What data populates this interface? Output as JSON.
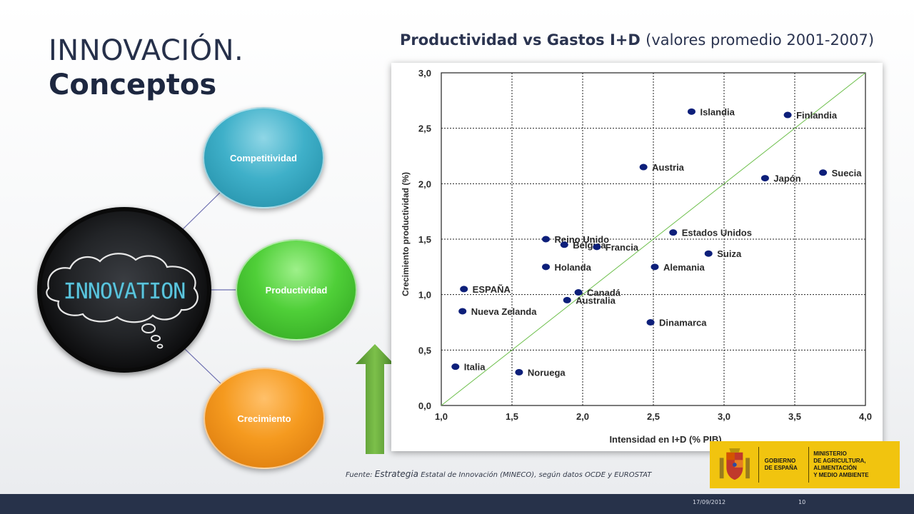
{
  "slide": {
    "title_line1": "INNOVACIÓN.",
    "title_line2": "Conceptos",
    "source_prefix": "Fuente: ",
    "source_emphasis": "Estrategia",
    "source_rest": " Estatal de Innovación (MINECO), según datos OCDE y EUROSTAT",
    "footer_date": "17/09/2012",
    "footer_page": "10"
  },
  "diagram": {
    "center_text": "INNOVATION",
    "nodes": [
      {
        "label": "Competitividad",
        "color": "#3fb0c9"
      },
      {
        "label": "Productividad",
        "color": "#4fcf38"
      },
      {
        "label": "Crecimiento",
        "color": "#f59a1f"
      }
    ]
  },
  "logo": {
    "text1": "GOBIERNO\nDE ESPAÑA",
    "text2": "MINISTERIO\nDE AGRICULTURA, ALIMENTACIÓN\nY MEDIO AMBIENTE",
    "color": "#f1c40f"
  },
  "chart_data": {
    "type": "scatter",
    "title_main": "Productividad vs Gastos I+D",
    "title_paren": "(valores promedio 2001-2007)",
    "xlabel": "Intensidad en I+D (% PIB)",
    "ylabel": "Crecimiento productividad (%)",
    "xlim": [
      1.0,
      4.0
    ],
    "ylim": [
      0.0,
      3.0
    ],
    "x_ticks": [
      "1,0",
      "1,5",
      "2,0",
      "2,5",
      "3,0",
      "3,5",
      "4,0"
    ],
    "y_ticks": [
      "0,0",
      "0,5",
      "1,0",
      "1,5",
      "2,0",
      "2,5",
      "3,0"
    ],
    "grid": true,
    "point_color": "#0d1f7a",
    "trend_color": "#6cbf4a",
    "trend_line": {
      "x": [
        1.0,
        4.0
      ],
      "y": [
        0.0,
        3.0
      ]
    },
    "points": [
      {
        "label": "Islandia",
        "x": 2.77,
        "y": 2.65
      },
      {
        "label": "Finlandia",
        "x": 3.45,
        "y": 2.62
      },
      {
        "label": "Austria",
        "x": 2.43,
        "y": 2.15
      },
      {
        "label": "Japón",
        "x": 3.29,
        "y": 2.05
      },
      {
        "label": "Suecia",
        "x": 3.7,
        "y": 2.1
      },
      {
        "label": "Reino Unido",
        "x": 1.74,
        "y": 1.5
      },
      {
        "label": "Bélgica",
        "x": 1.87,
        "y": 1.45
      },
      {
        "label": "Francia",
        "x": 2.1,
        "y": 1.43
      },
      {
        "label": "Estados Unidos",
        "x": 2.64,
        "y": 1.56
      },
      {
        "label": "Suiza",
        "x": 2.89,
        "y": 1.37
      },
      {
        "label": "Holanda",
        "x": 1.74,
        "y": 1.25
      },
      {
        "label": "Alemania",
        "x": 2.51,
        "y": 1.25
      },
      {
        "label": "ESPAÑA",
        "x": 1.16,
        "y": 1.05
      },
      {
        "label": "Canadá",
        "x": 1.97,
        "y": 1.02
      },
      {
        "label": "Australia",
        "x": 1.89,
        "y": 0.95
      },
      {
        "label": "Nueva Zelanda",
        "x": 1.15,
        "y": 0.85
      },
      {
        "label": "Dinamarca",
        "x": 2.48,
        "y": 0.75
      },
      {
        "label": "Italia",
        "x": 1.1,
        "y": 0.35
      },
      {
        "label": "Noruega",
        "x": 1.55,
        "y": 0.3
      }
    ]
  }
}
